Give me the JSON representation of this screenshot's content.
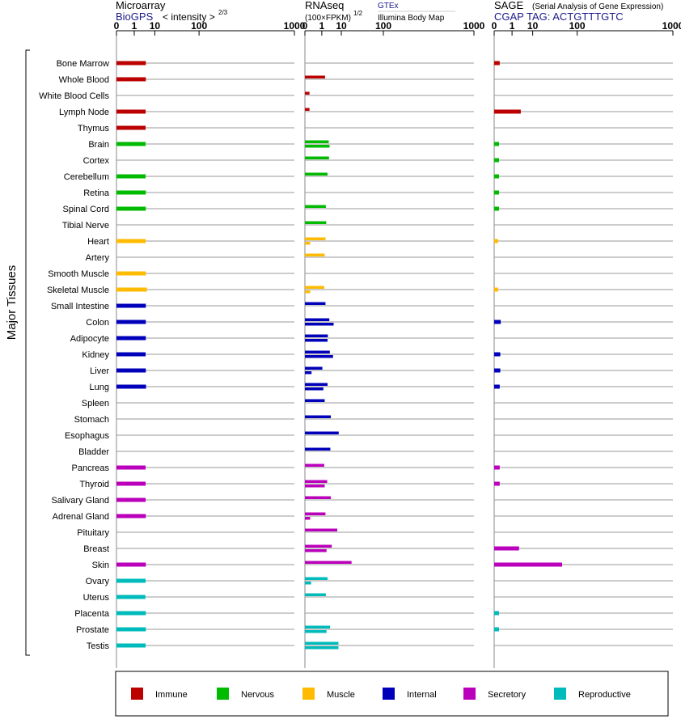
{
  "panels": {
    "microarray": {
      "title": "Microarray",
      "subtitle": "BioGPS",
      "scale_label": "< intensity >",
      "scale_exponent": "2/3"
    },
    "rnaseq": {
      "title": "RNAseq",
      "scale_label": "(100×FPKM)",
      "scale_exponent": "1/2",
      "source_top": "GTEx",
      "source_bottom": "Illumina Body Map"
    },
    "sage": {
      "title": "SAGE",
      "title_note": "(Serial Analysis of Gene Expression)",
      "subtitle": "CGAP TAG: ACTGTTTGTC"
    }
  },
  "tick_labels": [
    "0",
    "1",
    "10",
    "100",
    "1000"
  ],
  "y_group_label": "Major Tissues",
  "legend": [
    {
      "name": "Immune",
      "color": "#bb0000"
    },
    {
      "name": "Nervous",
      "color": "#00bb00"
    },
    {
      "name": "Muscle",
      "color": "#ffbb00"
    },
    {
      "name": "Internal",
      "color": "#0000bb"
    },
    {
      "name": "Secretory",
      "color": "#bb00bb"
    },
    {
      "name": "Reproductive",
      "color": "#00bbbb"
    }
  ],
  "chart_data": {
    "type": "bar",
    "orientation": "horizontal",
    "x_scale": "power (tick labels 0, 1, 10, 100, 1000)",
    "xlim": [
      0,
      1000
    ],
    "grid": true,
    "legend_position": "bottom",
    "categories": [
      "Bone Marrow",
      "Whole Blood",
      "White Blood Cells",
      "Lymph Node",
      "Thymus",
      "Brain",
      "Cortex",
      "Cerebellum",
      "Retina",
      "Spinal Cord",
      "Tibial Nerve",
      "Heart",
      "Artery",
      "Smooth Muscle",
      "Skeletal Muscle",
      "Small Intestine",
      "Colon",
      "Adipocyte",
      "Kidney",
      "Liver",
      "Lung",
      "Spleen",
      "Stomach",
      "Esophagus",
      "Bladder",
      "Pancreas",
      "Thyroid",
      "Salivary Gland",
      "Adrenal Gland",
      "Pituitary",
      "Breast",
      "Skin",
      "Ovary",
      "Uterus",
      "Placenta",
      "Prostate",
      "Testis"
    ],
    "category_system": [
      "Immune",
      "Immune",
      "Immune",
      "Immune",
      "Immune",
      "Nervous",
      "Nervous",
      "Nervous",
      "Nervous",
      "Nervous",
      "Nervous",
      "Muscle",
      "Muscle",
      "Muscle",
      "Muscle",
      "Internal",
      "Internal",
      "Internal",
      "Internal",
      "Internal",
      "Internal",
      "Internal",
      "Internal",
      "Internal",
      "Internal",
      "Secretory",
      "Secretory",
      "Secretory",
      "Secretory",
      "Secretory",
      "Secretory",
      "Secretory",
      "Reproductive",
      "Reproductive",
      "Reproductive",
      "Reproductive",
      "Reproductive"
    ],
    "series": [
      {
        "name": "Microarray",
        "values": [
          4.5,
          4.5,
          null,
          4.4,
          4.4,
          4.4,
          null,
          4.4,
          4.5,
          4.5,
          null,
          4.4,
          null,
          4.5,
          5.0,
          4.5,
          4.5,
          4.5,
          4.4,
          4.5,
          4.6,
          null,
          null,
          null,
          null,
          4.4,
          4.4,
          4.4,
          4.5,
          null,
          null,
          4.5,
          4.4,
          4.3,
          4.5,
          4.5,
          4.4
        ]
      },
      {
        "name": "RNAseq GTEx",
        "values": [
          null,
          1.7,
          0.02,
          0.02,
          null,
          2.8,
          2.9,
          2.4,
          null,
          1.9,
          2.0,
          1.8,
          1.6,
          null,
          1.5,
          1.8,
          3.0,
          2.5,
          3.2,
          1.1,
          2.4,
          1.6,
          3.6,
          8.0,
          3.4,
          1.5,
          2.3,
          3.6,
          1.8,
          7.0,
          4.0,
          21.0,
          2.4,
          1.9,
          null,
          3.3,
          7.8
        ]
      },
      {
        "name": "RNAseq Illumina Body Map",
        "values": [
          null,
          null,
          null,
          null,
          null,
          3.1,
          null,
          null,
          null,
          null,
          null,
          0.03,
          null,
          null,
          0.03,
          null,
          4.9,
          2.4,
          4.6,
          0.06,
          1.3,
          null,
          null,
          null,
          null,
          null,
          1.6,
          null,
          0.03,
          null,
          2.1,
          null,
          0.05,
          null,
          null,
          2.1,
          7.8
        ]
      },
      {
        "name": "SAGE",
        "values": [
          0.03,
          null,
          null,
          3.3,
          null,
          0.02,
          0.02,
          0.02,
          0.02,
          0.02,
          null,
          0.01,
          null,
          null,
          0.01,
          null,
          0.05,
          null,
          0.04,
          0.04,
          0.03,
          null,
          null,
          null,
          null,
          0.03,
          0.03,
          null,
          null,
          null,
          2.7,
          55.0,
          null,
          null,
          0.02,
          0.02,
          null
        ]
      }
    ]
  }
}
